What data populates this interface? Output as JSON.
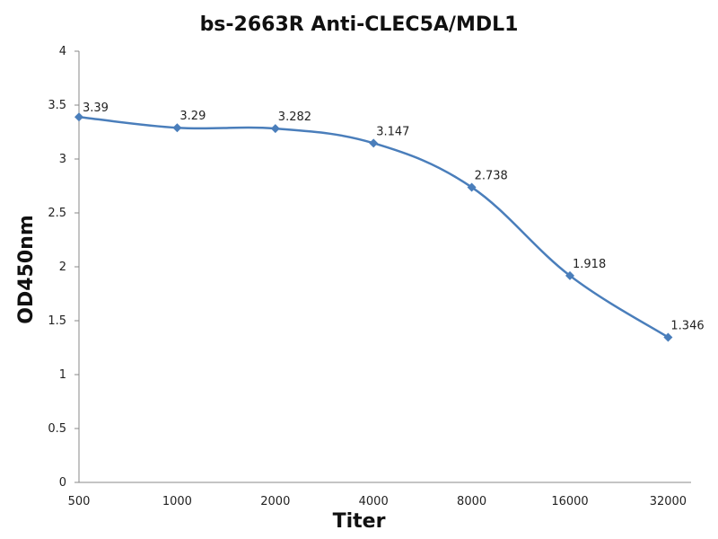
{
  "chart_data": {
    "type": "line",
    "title": "bs-2663R Anti-CLEC5A/MDL1",
    "xlabel": "Titer",
    "ylabel": "OD450nm",
    "categories": [
      "500",
      "1000",
      "2000",
      "4000",
      "8000",
      "16000",
      "32000"
    ],
    "series": [
      {
        "values": [
          3.39,
          3.29,
          3.282,
          3.147,
          2.738,
          1.918,
          1.346
        ],
        "labels": [
          "3.39",
          "3.29",
          "3.282",
          "3.147",
          "2.738",
          "1.918",
          "1.346"
        ],
        "color": "#4a7ebb",
        "marker": "diamond",
        "smooth": true
      }
    ],
    "ylim": [
      0,
      4
    ],
    "yticks": [
      "0",
      "0.5",
      "1",
      "1.5",
      "2",
      "2.5",
      "3",
      "3.5",
      "4"
    ],
    "grid": false,
    "legend": "none"
  }
}
